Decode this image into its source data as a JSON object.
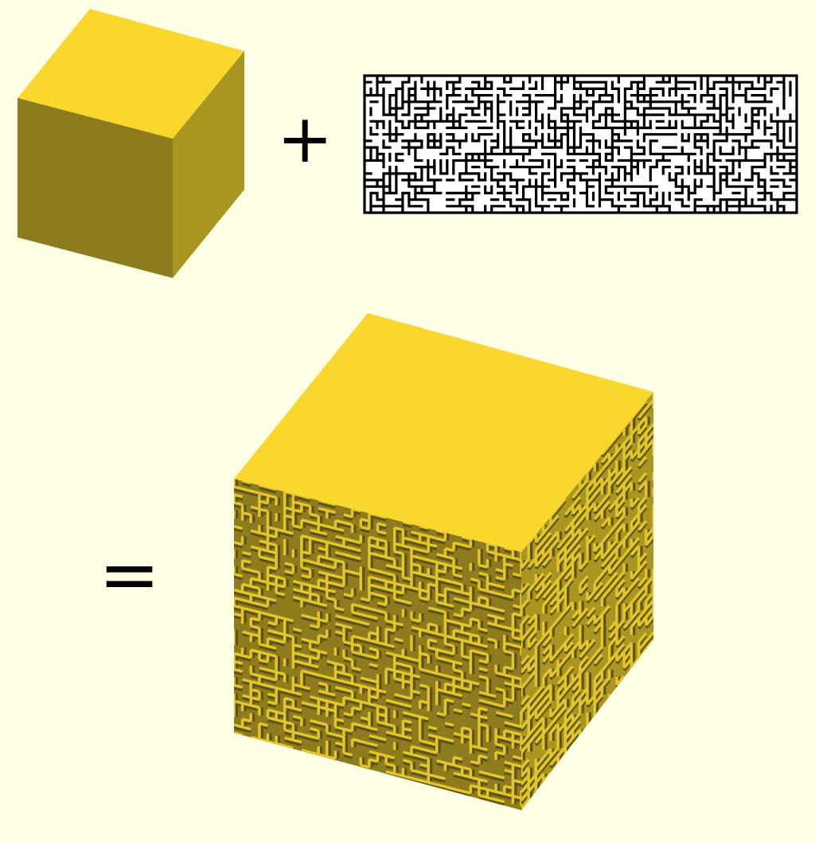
{
  "background_color": "#FFFFE5",
  "operators": {
    "plus": "+",
    "equals": "="
  },
  "plain_cube": {
    "top_color": "#F9D72C",
    "left_color": "#8E7B1D",
    "right_color": "#A9951F"
  },
  "maze_texture": {
    "wall_color": "#000000",
    "path_color": "#FFFFFF",
    "columns": 68,
    "rows": 21
  },
  "textured_cube": {
    "top_color": "#F9D72C",
    "left_color": "#8E7B1D",
    "right_color": "#A9951F",
    "ridge_light": "#E2C528",
    "ridge_dark": "#5E5214"
  }
}
